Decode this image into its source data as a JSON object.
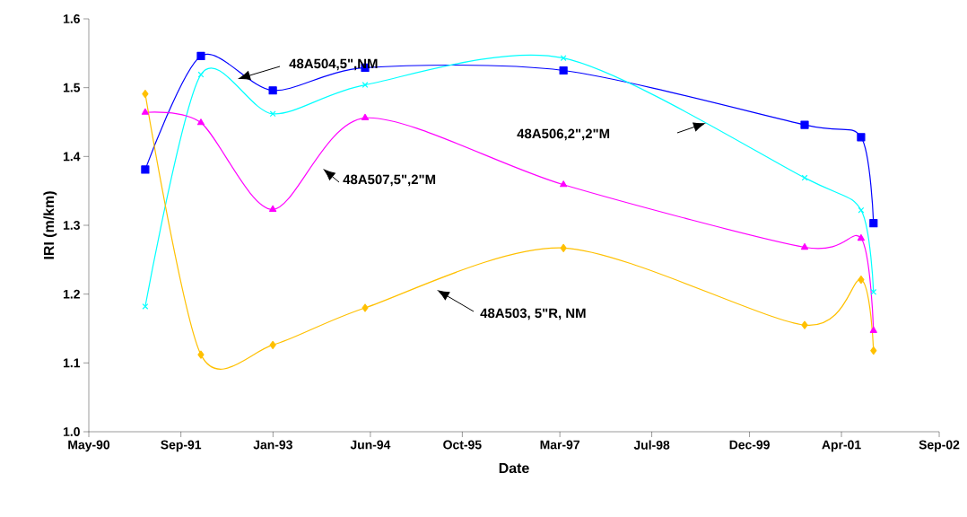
{
  "chart_data": {
    "type": "line",
    "xlabel": "Date",
    "ylabel": "IRI (m/km)",
    "x": [
      "1991-03-10",
      "1991-12-30",
      "1993-01-14",
      "1994-05-18",
      "1997-04-03",
      "2000-10-02",
      "2001-07-28",
      "2001-10-02"
    ],
    "series": [
      {
        "color": "#0000ff",
        "marker": "square",
        "values": [
          1.381,
          1.546,
          1.496,
          1.529,
          1.525,
          1.446,
          1.428,
          1.303
        ]
      },
      {
        "color": "#00ffff",
        "marker": "cross",
        "values": [
          1.182,
          1.519,
          1.462,
          1.504,
          1.543,
          1.369,
          1.322,
          1.203
        ]
      },
      {
        "color": "#ff00ff",
        "marker": "triangle",
        "values": [
          1.464,
          1.449,
          1.323,
          1.456,
          1.359,
          1.268,
          1.281,
          1.147
        ]
      },
      {
        "color": "#ffc000",
        "marker": "diamond",
        "values": [
          1.491,
          1.112,
          1.126,
          1.18,
          1.267,
          1.155,
          1.221,
          1.118
        ]
      }
    ],
    "line_style": "solid",
    "xlim": [
      "1990-05-15",
      "2002-09-15"
    ],
    "xticks": [
      {
        "value": "1990-05-15",
        "label": "May-90"
      },
      {
        "value": "1991-09-15",
        "label": "Sep-91"
      },
      {
        "value": "1993-01-15",
        "label": "Jan-93"
      },
      {
        "value": "1994-06-15",
        "label": "Jun-94"
      },
      {
        "value": "1995-10-15",
        "label": "Oct-95"
      },
      {
        "value": "1997-03-15",
        "label": "Mar-97"
      },
      {
        "value": "1998-07-15",
        "label": "Jul-98"
      },
      {
        "value": "1999-12-15",
        "label": "Dec-99"
      },
      {
        "value": "2001-04-15",
        "label": "Apr-01"
      },
      {
        "value": "2002-09-15",
        "label": "Sep-02"
      }
    ],
    "ylim": [
      1.0,
      1.6
    ],
    "yticks": [
      {
        "value": 1.0,
        "label": "1.0"
      },
      {
        "value": 1.1,
        "label": "1.1"
      },
      {
        "value": 1.2,
        "label": "1.2"
      },
      {
        "value": 1.3,
        "label": "1.3"
      },
      {
        "value": 1.4,
        "label": "1.4"
      },
      {
        "value": 1.5,
        "label": "1.5"
      },
      {
        "value": 1.6,
        "label": "1.6"
      }
    ],
    "grid": false,
    "annotations": [
      "48A504,5\",NM",
      "48A506,2\",2\"M",
      "48A507,5\",2\"M",
      "48A503, 5\"R, NM"
    ]
  }
}
